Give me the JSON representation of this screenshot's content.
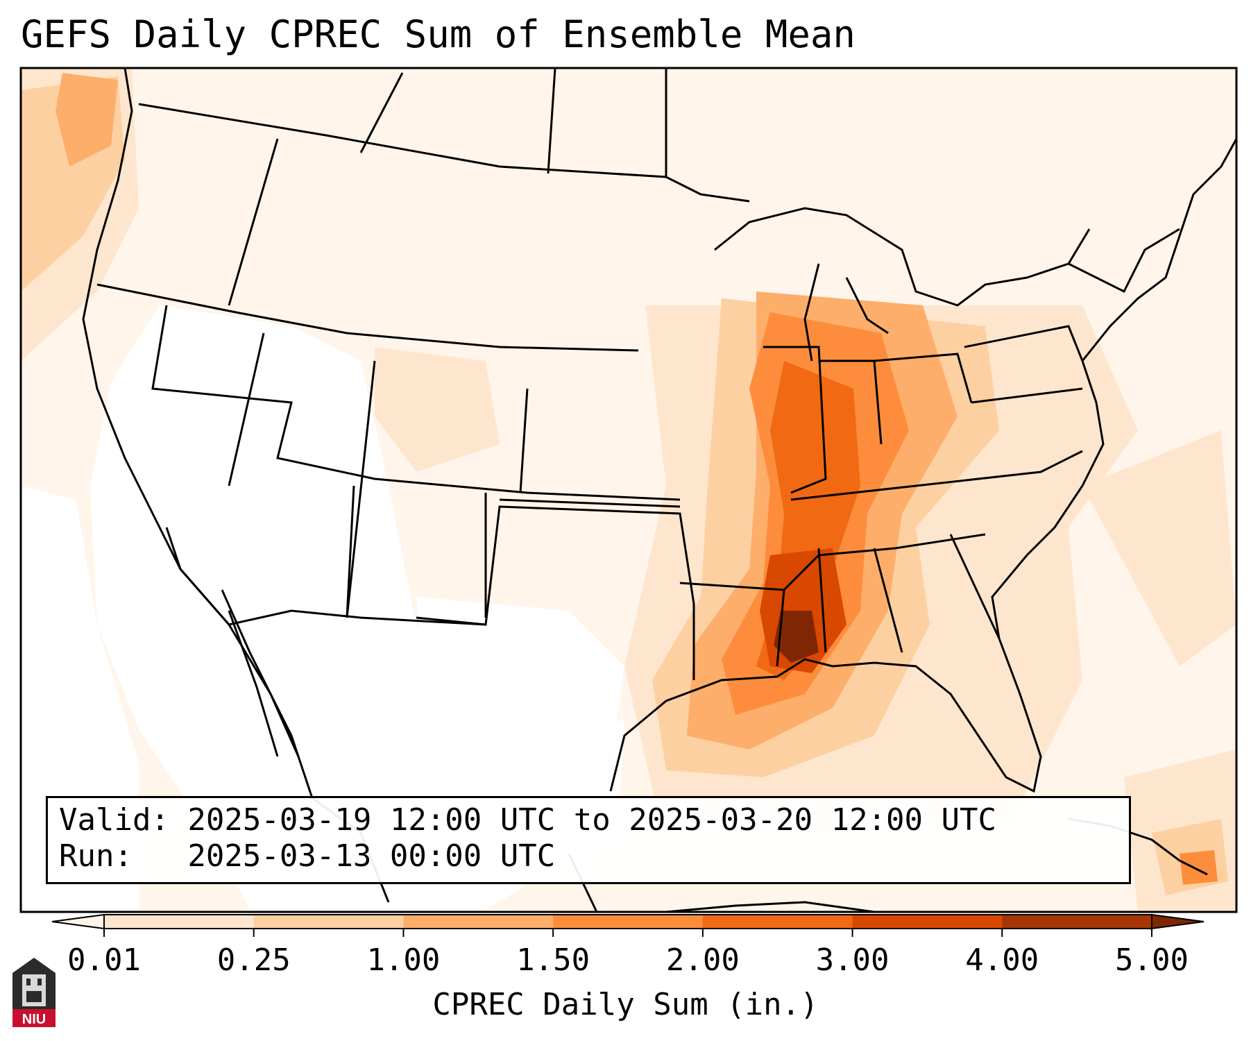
{
  "title": "GEFS Daily CPREC Sum of Ensemble Mean",
  "valid_line": "Valid: 2025-03-19 12:00 UTC to 2025-03-20 12:00 UTC",
  "run_line": "Run:   2025-03-13 00:00 UTC",
  "colorbar": {
    "label": "CPREC Daily Sum (in.)",
    "ticks": [
      "0.01",
      "0.25",
      "1.00",
      "1.50",
      "2.00",
      "3.00",
      "4.00",
      "5.00"
    ],
    "colors": [
      "#fff5eb",
      "#fee6ce",
      "#fdd0a2",
      "#fdae6b",
      "#fd8d3c",
      "#f16913",
      "#d94801",
      "#a63603",
      "#7f2704"
    ]
  },
  "logo_text": "NIU",
  "regions": [
    {
      "name": "pacific-northwest-offshore",
      "level": 3
    },
    {
      "name": "mississippi-alabama-core",
      "level": 8
    },
    {
      "name": "lower-mississippi-valley",
      "level": 6
    },
    {
      "name": "ohio-valley",
      "level": 5
    },
    {
      "name": "gulf-coast",
      "level": 4
    },
    {
      "name": "caribbean-east",
      "level": 5
    }
  ]
}
